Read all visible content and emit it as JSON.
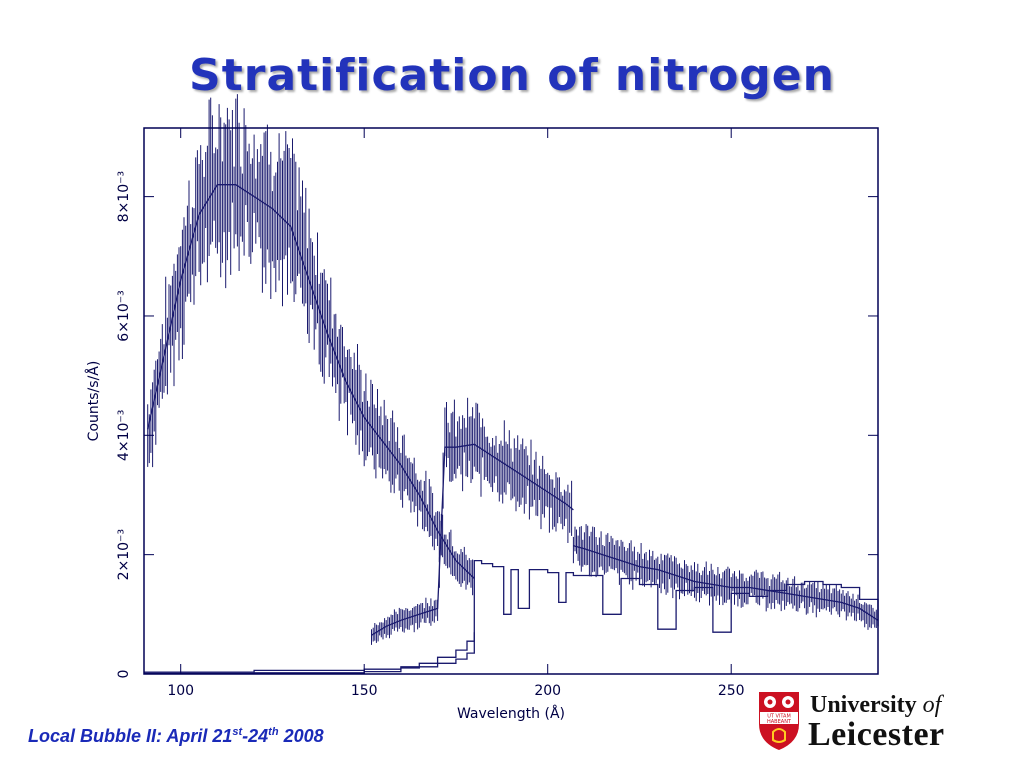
{
  "slide": {
    "title": "Stratification of nitrogen",
    "footer": {
      "prefix": "Local Bubble II: April 21",
      "sup1": "st",
      "mid": "-24",
      "sup2": "th",
      "suffix": " 2008"
    },
    "logo": {
      "line1_main": "University ",
      "line1_of": "of",
      "line2": "Leicester",
      "motto_top": "UT VITAM",
      "motto_bottom": "HABEANT"
    }
  },
  "colors": {
    "title": "#2233bb",
    "plot": "#1a1a6e",
    "frame": "#000055",
    "crest_red": "#cc1122"
  },
  "chart_data": {
    "type": "line",
    "title": "",
    "xlabel": "Wavelength (Å)",
    "ylabel": "Counts/s/Å)",
    "xlim": [
      90,
      290
    ],
    "ylim": [
      0,
      0.00915
    ],
    "xticks": [
      {
        "value": 100,
        "label": "100"
      },
      {
        "value": 150,
        "label": "150"
      },
      {
        "value": 200,
        "label": "200"
      },
      {
        "value": 250,
        "label": "250"
      }
    ],
    "yticks": [
      {
        "value": 0,
        "label": "0"
      },
      {
        "value": 0.002,
        "label": "2×10⁻³"
      },
      {
        "value": 0.004,
        "label": "4×10⁻³"
      },
      {
        "value": 0.006,
        "label": "6×10⁻³"
      },
      {
        "value": 0.008,
        "label": "8×10⁻³"
      }
    ],
    "grid": false,
    "series": [
      {
        "kind": "data-with-errorbars",
        "x": [
          91,
          95,
          100,
          105,
          110,
          115,
          120,
          125,
          130,
          135,
          140,
          145,
          150,
          155,
          160,
          165,
          170,
          175,
          180
        ],
        "y": [
          0.004,
          0.0052,
          0.0066,
          0.0077,
          0.0082,
          0.0083,
          0.0081,
          0.0079,
          0.0076,
          0.0067,
          0.0058,
          0.005,
          0.0043,
          0.0039,
          0.0035,
          0.003,
          0.0024,
          0.0019,
          0.0016
        ]
      },
      {
        "kind": "model",
        "x": [
          91,
          95,
          100,
          105,
          110,
          115,
          120,
          125,
          130,
          135,
          140,
          145,
          150,
          155,
          160,
          165,
          170,
          175,
          180
        ],
        "y": [
          0.0041,
          0.0052,
          0.0066,
          0.0077,
          0.0082,
          0.0082,
          0.008,
          0.0078,
          0.0075,
          0.0066,
          0.0057,
          0.0049,
          0.0043,
          0.0039,
          0.0035,
          0.003,
          0.0024,
          0.0019,
          0.0016
        ]
      },
      {
        "kind": "data-with-errorbars",
        "x": [
          152,
          156,
          160,
          165,
          170,
          172,
          175,
          180,
          185,
          190,
          195,
          200,
          205,
          207
        ],
        "y": [
          0.00065,
          0.0008,
          0.0009,
          0.001,
          0.0011,
          0.00385,
          0.00375,
          0.00385,
          0.0036,
          0.00345,
          0.0032,
          0.003,
          0.0028,
          0.0027
        ]
      },
      {
        "kind": "model",
        "x": [
          152,
          156,
          160,
          165,
          170,
          172,
          175,
          180,
          185,
          190,
          195,
          200,
          205,
          207
        ],
        "y": [
          0.00065,
          0.0008,
          0.0009,
          0.001,
          0.0011,
          0.0038,
          0.0038,
          0.00385,
          0.00365,
          0.00345,
          0.00325,
          0.00305,
          0.00285,
          0.00275
        ]
      },
      {
        "kind": "data-with-errorbars",
        "x": [
          207,
          210,
          215,
          220,
          225,
          230,
          235,
          240,
          245,
          250,
          255,
          260,
          265,
          270,
          275,
          280,
          285,
          290
        ],
        "y": [
          0.00215,
          0.0021,
          0.002,
          0.0019,
          0.0018,
          0.00175,
          0.00165,
          0.00155,
          0.0015,
          0.00145,
          0.00145,
          0.0014,
          0.00135,
          0.0013,
          0.00125,
          0.0012,
          0.0011,
          0.00085
        ]
      },
      {
        "kind": "model",
        "x": [
          207,
          210,
          215,
          220,
          225,
          230,
          235,
          240,
          245,
          250,
          255,
          260,
          265,
          270,
          275,
          280,
          285,
          290
        ],
        "y": [
          0.00215,
          0.0021,
          0.002,
          0.0019,
          0.0018,
          0.00175,
          0.00165,
          0.00155,
          0.0015,
          0.00145,
          0.00145,
          0.0014,
          0.00135,
          0.0013,
          0.00125,
          0.0012,
          0.0011,
          0.0009
        ]
      },
      {
        "kind": "model-absorption",
        "x": [
          90,
          120,
          150,
          160,
          170,
          175,
          178,
          180,
          182,
          185,
          188,
          190,
          192,
          195,
          200,
          203,
          205,
          207,
          210,
          215,
          220,
          225,
          230,
          235,
          240,
          245,
          250,
          255,
          260,
          265,
          270,
          275,
          280,
          285,
          290
        ],
        "y": [
          3e-05,
          6e-05,
          8e-05,
          0.00012,
          0.00018,
          0.00025,
          0.00035,
          0.0019,
          0.00185,
          0.0018,
          0.001,
          0.00175,
          0.0011,
          0.00175,
          0.0017,
          0.0012,
          0.0017,
          0.00165,
          0.00165,
          0.001,
          0.0016,
          0.0015,
          0.00075,
          0.0014,
          0.00145,
          0.0007,
          0.00135,
          0.0013,
          0.0014,
          0.0015,
          0.00155,
          0.0015,
          0.00145,
          0.00125,
          0.0008
        ]
      },
      {
        "kind": "model-absorption",
        "x": [
          90,
          120,
          150,
          160,
          165,
          170,
          175,
          178,
          180
        ],
        "y": [
          1e-05,
          2e-05,
          4e-05,
          0.0001,
          0.00018,
          0.00028,
          0.0004,
          0.00055,
          0.0007
        ]
      }
    ]
  }
}
